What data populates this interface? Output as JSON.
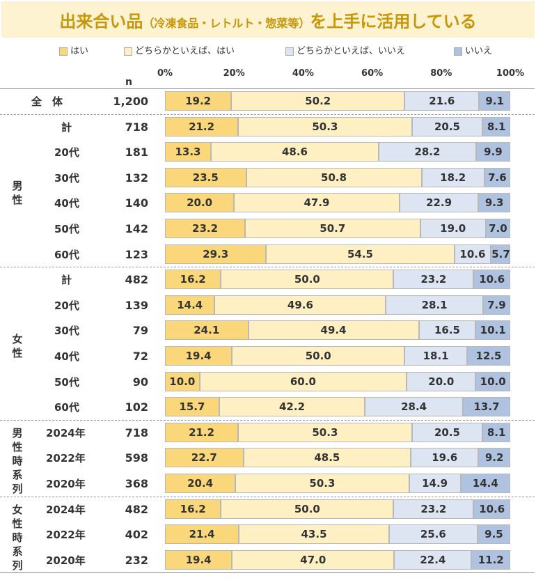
{
  "title_main": "出来合い品",
  "title_paren": "（冷凍食品・レトルト・惣菜等）",
  "title_tail": "を上手に活用している",
  "n_header": "n",
  "legend": [
    {
      "label": "はい",
      "color": "#fad77a"
    },
    {
      "label": "どちらかといえば、はい",
      "color": "#fff0c4"
    },
    {
      "label": "どちらかといえば、いいえ",
      "color": "#dde5f2"
    },
    {
      "label": "いいえ",
      "color": "#afc2df"
    }
  ],
  "chart_data": {
    "type": "bar",
    "orientation": "horizontal-stacked-100",
    "xlim": [
      0,
      100
    ],
    "xticks": [
      "0%",
      "20%",
      "40%",
      "60%",
      "80%",
      "100%"
    ],
    "series_names": [
      "はい",
      "どちらかといえば、はい",
      "どちらかといえば、いいえ",
      "いいえ"
    ],
    "groups": [
      {
        "label": "",
        "rows": [
          {
            "label": "全　体",
            "n": "1,200",
            "values": [
              19.2,
              50.2,
              21.6,
              9.1
            ]
          }
        ]
      },
      {
        "label": "男性",
        "rows": [
          {
            "label": "計",
            "n": "718",
            "values": [
              21.2,
              50.3,
              20.5,
              8.1
            ]
          },
          {
            "label": "20代",
            "n": "181",
            "values": [
              13.3,
              48.6,
              28.2,
              9.9
            ]
          },
          {
            "label": "30代",
            "n": "132",
            "values": [
              23.5,
              50.8,
              18.2,
              7.6
            ]
          },
          {
            "label": "40代",
            "n": "140",
            "values": [
              20.0,
              47.9,
              22.9,
              9.3
            ]
          },
          {
            "label": "50代",
            "n": "142",
            "values": [
              23.2,
              50.7,
              19.0,
              7.0
            ]
          },
          {
            "label": "60代",
            "n": "123",
            "values": [
              29.3,
              54.5,
              10.6,
              5.7
            ]
          }
        ]
      },
      {
        "label": "女性",
        "rows": [
          {
            "label": "計",
            "n": "482",
            "values": [
              16.2,
              50.0,
              23.2,
              10.6
            ]
          },
          {
            "label": "20代",
            "n": "139",
            "values": [
              14.4,
              49.6,
              28.1,
              7.9
            ]
          },
          {
            "label": "30代",
            "n": "79",
            "values": [
              24.1,
              49.4,
              16.5,
              10.1
            ]
          },
          {
            "label": "40代",
            "n": "72",
            "values": [
              19.4,
              50.0,
              18.1,
              12.5
            ]
          },
          {
            "label": "50代",
            "n": "90",
            "values": [
              10.0,
              60.0,
              20.0,
              10.0
            ]
          },
          {
            "label": "60代",
            "n": "102",
            "values": [
              15.7,
              42.2,
              28.4,
              13.7
            ]
          }
        ]
      },
      {
        "label": "男性時系列",
        "rows": [
          {
            "label": "2024年",
            "n": "718",
            "values": [
              21.2,
              50.3,
              20.5,
              8.1
            ]
          },
          {
            "label": "2022年",
            "n": "598",
            "values": [
              22.7,
              48.5,
              19.6,
              9.2
            ]
          },
          {
            "label": "2020年",
            "n": "368",
            "values": [
              20.4,
              50.3,
              14.9,
              14.4
            ]
          }
        ]
      },
      {
        "label": "女性時系列",
        "rows": [
          {
            "label": "2024年",
            "n": "482",
            "values": [
              16.2,
              50.0,
              23.2,
              10.6
            ]
          },
          {
            "label": "2022年",
            "n": "402",
            "values": [
              21.4,
              43.5,
              25.6,
              9.5
            ]
          },
          {
            "label": "2020年",
            "n": "232",
            "values": [
              19.4,
              47.0,
              22.4,
              11.2
            ]
          }
        ]
      }
    ]
  }
}
